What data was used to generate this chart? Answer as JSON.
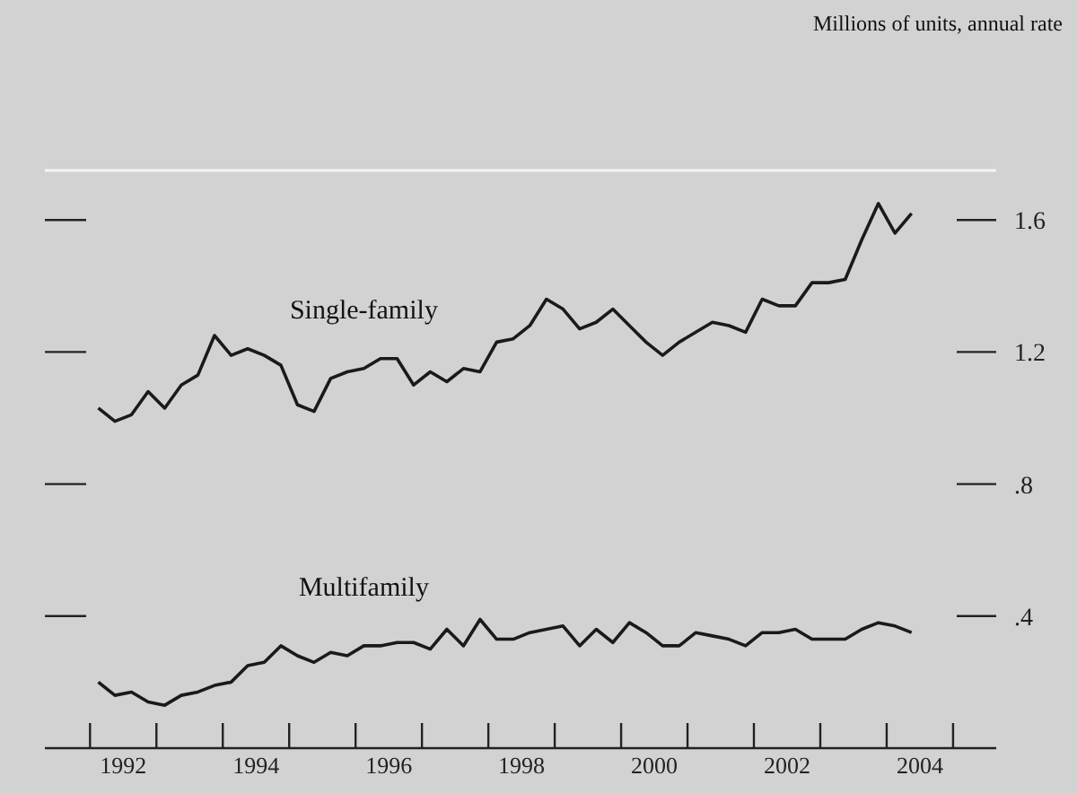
{
  "chart_data": {
    "type": "line",
    "annotations": [
      "Millions of units, annual rate"
    ],
    "x": [
      1992.125,
      1992.375,
      1992.625,
      1992.875,
      1993.125,
      1993.375,
      1993.625,
      1993.875,
      1994.125,
      1994.375,
      1994.625,
      1994.875,
      1995.125,
      1995.375,
      1995.625,
      1995.875,
      1996.125,
      1996.375,
      1996.625,
      1996.875,
      1997.125,
      1997.375,
      1997.625,
      1997.875,
      1998.125,
      1998.375,
      1998.625,
      1998.875,
      1999.125,
      1999.375,
      1999.625,
      1999.875,
      2000.125,
      2000.375,
      2000.625,
      2000.875,
      2001.125,
      2001.375,
      2001.625,
      2001.875,
      2002.125,
      2002.375,
      2002.625,
      2002.875,
      2003.125,
      2003.375,
      2003.625,
      2003.875,
      2004.125,
      2004.375
    ],
    "series": [
      {
        "name": "Single-family",
        "color": "#1a1a1a",
        "values": [
          1.03,
          0.99,
          1.01,
          1.08,
          1.03,
          1.1,
          1.13,
          1.25,
          1.19,
          1.21,
          1.19,
          1.16,
          1.04,
          1.02,
          1.12,
          1.14,
          1.15,
          1.18,
          1.18,
          1.1,
          1.14,
          1.11,
          1.15,
          1.14,
          1.23,
          1.24,
          1.28,
          1.36,
          1.33,
          1.27,
          1.29,
          1.33,
          1.28,
          1.23,
          1.19,
          1.23,
          1.26,
          1.29,
          1.28,
          1.26,
          1.36,
          1.34,
          1.34,
          1.41,
          1.41,
          1.42,
          1.54,
          1.65,
          1.56,
          1.62
        ]
      },
      {
        "name": "Multifamily",
        "color": "#1a1a1a",
        "values": [
          0.2,
          0.16,
          0.17,
          0.14,
          0.13,
          0.16,
          0.17,
          0.19,
          0.2,
          0.25,
          0.26,
          0.31,
          0.28,
          0.26,
          0.29,
          0.28,
          0.31,
          0.31,
          0.32,
          0.32,
          0.3,
          0.36,
          0.31,
          0.39,
          0.33,
          0.33,
          0.35,
          0.36,
          0.37,
          0.31,
          0.36,
          0.32,
          0.38,
          0.35,
          0.31,
          0.31,
          0.35,
          0.34,
          0.33,
          0.31,
          0.35,
          0.35,
          0.36,
          0.33,
          0.33,
          0.33,
          0.36,
          0.38,
          0.37,
          0.35
        ]
      }
    ],
    "xlim": [
      1991.32,
      2005.65
    ],
    "xticks": [
      {
        "value": 1992,
        "label": null
      },
      {
        "value": 1993,
        "label": null
      },
      {
        "value": 1994,
        "label": null
      },
      {
        "value": 1995,
        "label": null
      },
      {
        "value": 1996,
        "label": null
      },
      {
        "value": 1997,
        "label": null
      },
      {
        "value": 1998,
        "label": null
      },
      {
        "value": 1999,
        "label": null
      },
      {
        "value": 2000,
        "label": null
      },
      {
        "value": 2001,
        "label": null
      },
      {
        "value": 2002,
        "label": null
      },
      {
        "value": 2003,
        "label": null
      },
      {
        "value": 2004,
        "label": null
      },
      {
        "value": 2005,
        "label": null
      },
      {
        "value": 1992.5,
        "label": "1992"
      },
      {
        "value": 1994.5,
        "label": "1994"
      },
      {
        "value": 1996.5,
        "label": "1996"
      },
      {
        "value": 1998.5,
        "label": "1998"
      },
      {
        "value": 2000.5,
        "label": "2000"
      },
      {
        "value": 2002.5,
        "label": "2002"
      },
      {
        "value": 2004.5,
        "label": "2004"
      }
    ],
    "ylim": [
      0,
      1.75
    ],
    "yticks": [
      {
        "value": 0.4,
        "label": ".4"
      },
      {
        "value": 0.8,
        "label": ".8"
      },
      1.2,
      1.6
    ]
  }
}
